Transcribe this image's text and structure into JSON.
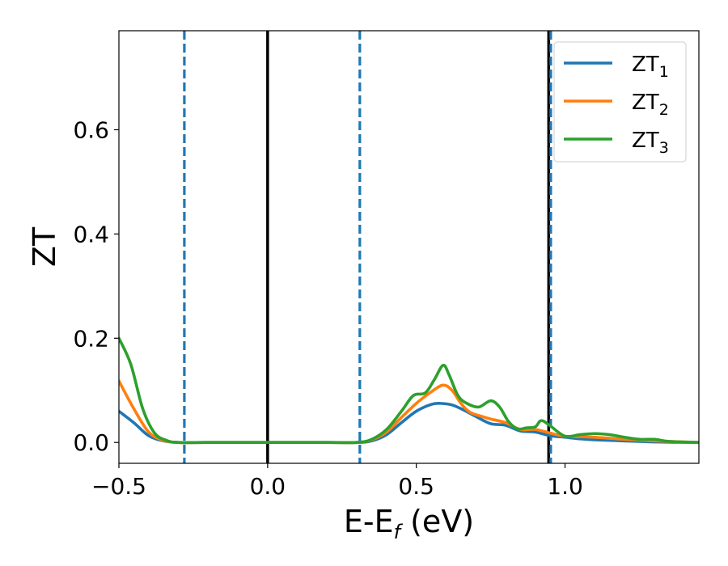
{
  "chart_data": {
    "type": "line",
    "xlabel": {
      "main": "E-E",
      "sub": "f",
      "suffix": " (eV)"
    },
    "ylabel": "ZT",
    "xlim": [
      -0.5,
      1.45
    ],
    "ylim": [
      -0.04,
      0.79
    ],
    "x_ticks": [
      {
        "value": -0.5,
        "label": "−0.5"
      },
      {
        "value": 0.0,
        "label": "0.0"
      },
      {
        "value": 0.5,
        "label": "0.5"
      },
      {
        "value": 1.0,
        "label": "1.0"
      }
    ],
    "y_ticks": [
      {
        "value": 0.0,
        "label": "0.0"
      },
      {
        "value": 0.2,
        "label": "0.2"
      },
      {
        "value": 0.4,
        "label": "0.4"
      },
      {
        "value": 0.6,
        "label": "0.6"
      }
    ],
    "grid": false,
    "legend_position": "upper right",
    "vlines": [
      {
        "x": -0.28,
        "style": "dashed",
        "color": "#1f77b4"
      },
      {
        "x": 0.0,
        "style": "solid",
        "color": "#000000"
      },
      {
        "x": 0.31,
        "style": "dashed",
        "color": "#1f77b4"
      },
      {
        "x": 0.945,
        "style": "solid",
        "color": "#000000"
      },
      {
        "x": 0.952,
        "style": "dashed",
        "color": "#1f77b4"
      }
    ],
    "series": [
      {
        "name": "ZT",
        "sub": "1",
        "color": "#1f77b4",
        "points": [
          [
            -0.5,
            0.06
          ],
          [
            -0.45,
            0.038
          ],
          [
            -0.4,
            0.013
          ],
          [
            -0.35,
            0.003
          ],
          [
            -0.3,
            0.0
          ],
          [
            -0.2,
            0.0
          ],
          [
            0.0,
            0.0
          ],
          [
            0.2,
            0.0
          ],
          [
            0.3,
            0.0
          ],
          [
            0.35,
            0.003
          ],
          [
            0.4,
            0.015
          ],
          [
            0.45,
            0.038
          ],
          [
            0.5,
            0.06
          ],
          [
            0.55,
            0.073
          ],
          [
            0.58,
            0.075
          ],
          [
            0.62,
            0.072
          ],
          [
            0.66,
            0.062
          ],
          [
            0.7,
            0.05
          ],
          [
            0.75,
            0.036
          ],
          [
            0.8,
            0.033
          ],
          [
            0.85,
            0.022
          ],
          [
            0.9,
            0.02
          ],
          [
            0.95,
            0.013
          ],
          [
            1.0,
            0.01
          ],
          [
            1.05,
            0.007
          ],
          [
            1.1,
            0.005
          ],
          [
            1.2,
            0.003
          ],
          [
            1.3,
            0.001
          ],
          [
            1.45,
            0.0
          ]
        ]
      },
      {
        "name": "ZT",
        "sub": "2",
        "color": "#ff7f0e",
        "points": [
          [
            -0.5,
            0.118
          ],
          [
            -0.45,
            0.065
          ],
          [
            -0.4,
            0.02
          ],
          [
            -0.35,
            0.004
          ],
          [
            -0.3,
            0.0
          ],
          [
            -0.2,
            0.0
          ],
          [
            0.0,
            0.0
          ],
          [
            0.2,
            0.0
          ],
          [
            0.3,
            0.0
          ],
          [
            0.35,
            0.005
          ],
          [
            0.4,
            0.02
          ],
          [
            0.45,
            0.048
          ],
          [
            0.5,
            0.075
          ],
          [
            0.55,
            0.097
          ],
          [
            0.59,
            0.11
          ],
          [
            0.62,
            0.1
          ],
          [
            0.65,
            0.075
          ],
          [
            0.68,
            0.058
          ],
          [
            0.72,
            0.05
          ],
          [
            0.75,
            0.045
          ],
          [
            0.8,
            0.038
          ],
          [
            0.85,
            0.025
          ],
          [
            0.9,
            0.025
          ],
          [
            0.95,
            0.018
          ],
          [
            1.0,
            0.012
          ],
          [
            1.05,
            0.011
          ],
          [
            1.1,
            0.01
          ],
          [
            1.15,
            0.008
          ],
          [
            1.2,
            0.006
          ],
          [
            1.3,
            0.003
          ],
          [
            1.45,
            0.0
          ]
        ]
      },
      {
        "name": "ZT",
        "sub": "3",
        "color": "#2ca02c",
        "points": [
          [
            -0.5,
            0.2
          ],
          [
            -0.46,
            0.15
          ],
          [
            -0.42,
            0.065
          ],
          [
            -0.38,
            0.018
          ],
          [
            -0.34,
            0.004
          ],
          [
            -0.3,
            0.0
          ],
          [
            -0.2,
            0.0
          ],
          [
            0.0,
            0.0
          ],
          [
            0.2,
            0.0
          ],
          [
            0.3,
            0.0
          ],
          [
            0.35,
            0.006
          ],
          [
            0.4,
            0.025
          ],
          [
            0.45,
            0.06
          ],
          [
            0.49,
            0.09
          ],
          [
            0.53,
            0.095
          ],
          [
            0.56,
            0.12
          ],
          [
            0.59,
            0.148
          ],
          [
            0.61,
            0.13
          ],
          [
            0.64,
            0.09
          ],
          [
            0.67,
            0.075
          ],
          [
            0.71,
            0.068
          ],
          [
            0.75,
            0.08
          ],
          [
            0.78,
            0.068
          ],
          [
            0.81,
            0.04
          ],
          [
            0.84,
            0.026
          ],
          [
            0.87,
            0.028
          ],
          [
            0.9,
            0.03
          ],
          [
            0.92,
            0.042
          ],
          [
            0.95,
            0.032
          ],
          [
            1.0,
            0.012
          ],
          [
            1.05,
            0.015
          ],
          [
            1.1,
            0.017
          ],
          [
            1.15,
            0.015
          ],
          [
            1.2,
            0.01
          ],
          [
            1.25,
            0.006
          ],
          [
            1.3,
            0.006
          ],
          [
            1.35,
            0.002
          ],
          [
            1.45,
            0.0
          ]
        ]
      }
    ]
  }
}
